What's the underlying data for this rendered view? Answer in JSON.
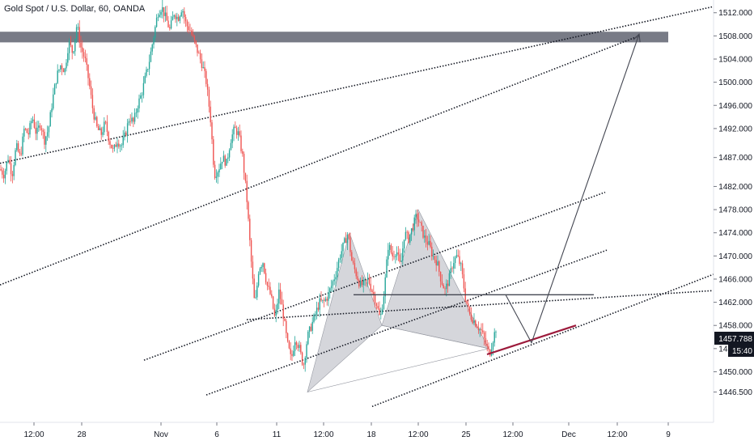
{
  "header": {
    "symbol_title": "Gold Spot / U.S. Dollar, 60, OANDA"
  },
  "price_badges": {
    "last_price": "1457.788",
    "countdown": "15:40"
  },
  "chart_data": {
    "type": "candlestick",
    "title": "Gold Spot / U.S. Dollar, 60, OANDA",
    "xlabel": "",
    "ylabel": "",
    "ylim": [
      1443.5,
      1513.5
    ],
    "y_ticks": [
      "1512.000",
      "1508.000",
      "1504.000",
      "1500.000",
      "1496.000",
      "1492.000",
      "1487.000",
      "1482.000",
      "1478.000",
      "1474.000",
      "1470.000",
      "1466.000",
      "1462.000",
      "1458.000",
      "1454.000",
      "1450.000",
      "1446.500"
    ],
    "x_ticks": [
      "12:00",
      "28",
      "Nov",
      "6",
      "11",
      "12:00",
      "18",
      "12:00",
      "25",
      "12:00",
      "Dec",
      "12:00",
      "9"
    ],
    "price_path": [
      [
        0,
        1485
      ],
      [
        5,
        1484
      ],
      [
        10,
        1487
      ],
      [
        15,
        1484
      ],
      [
        20,
        1489
      ],
      [
        25,
        1487
      ],
      [
        30,
        1492
      ],
      [
        35,
        1491
      ],
      [
        40,
        1494
      ],
      [
        45,
        1491
      ],
      [
        50,
        1493
      ],
      [
        55,
        1490
      ],
      [
        60,
        1492
      ],
      [
        65,
        1497
      ],
      [
        70,
        1501
      ],
      [
        75,
        1503
      ],
      [
        80,
        1502
      ],
      [
        85,
        1507
      ],
      [
        90,
        1505
      ],
      [
        95,
        1510
      ],
      [
        100,
        1506
      ],
      [
        105,
        1504
      ],
      [
        110,
        1500
      ],
      [
        115,
        1495
      ],
      [
        120,
        1492
      ],
      [
        125,
        1491
      ],
      [
        130,
        1493
      ],
      [
        135,
        1490
      ],
      [
        140,
        1488
      ],
      [
        145,
        1490
      ],
      [
        150,
        1489
      ],
      [
        155,
        1491
      ],
      [
        160,
        1494
      ],
      [
        165,
        1493
      ],
      [
        170,
        1496
      ],
      [
        175,
        1498
      ],
      [
        180,
        1501
      ],
      [
        185,
        1504
      ],
      [
        190,
        1508
      ],
      [
        195,
        1512
      ],
      [
        200,
        1513
      ],
      [
        205,
        1511
      ],
      [
        210,
        1509
      ],
      [
        215,
        1512
      ],
      [
        220,
        1511
      ],
      [
        225,
        1513
      ],
      [
        230,
        1510
      ],
      [
        235,
        1509
      ],
      [
        240,
        1507
      ],
      [
        245,
        1505
      ],
      [
        250,
        1503
      ],
      [
        255,
        1500
      ],
      [
        260,
        1494
      ],
      [
        265,
        1484
      ],
      [
        270,
        1485
      ],
      [
        275,
        1487
      ],
      [
        280,
        1486
      ],
      [
        285,
        1490
      ],
      [
        290,
        1492
      ],
      [
        295,
        1491
      ],
      [
        300,
        1487
      ],
      [
        305,
        1480
      ],
      [
        310,
        1470
      ],
      [
        315,
        1461
      ],
      [
        320,
        1468
      ],
      [
        325,
        1469
      ],
      [
        330,
        1465
      ],
      [
        335,
        1463
      ],
      [
        340,
        1459
      ],
      [
        345,
        1464
      ],
      [
        350,
        1460
      ],
      [
        355,
        1455
      ],
      [
        360,
        1452
      ],
      [
        365,
        1456
      ],
      [
        370,
        1454
      ],
      [
        375,
        1451
      ],
      [
        380,
        1456
      ],
      [
        385,
        1458
      ],
      [
        390,
        1460
      ],
      [
        395,
        1462
      ],
      [
        400,
        1462
      ],
      [
        405,
        1463
      ],
      [
        410,
        1465
      ],
      [
        415,
        1467
      ],
      [
        420,
        1470
      ],
      [
        425,
        1472
      ],
      [
        430,
        1474
      ],
      [
        435,
        1469
      ],
      [
        440,
        1467
      ],
      [
        445,
        1465
      ],
      [
        450,
        1465
      ],
      [
        455,
        1466
      ],
      [
        460,
        1464
      ],
      [
        465,
        1462
      ],
      [
        470,
        1459
      ],
      [
        475,
        1464
      ],
      [
        480,
        1472
      ],
      [
        485,
        1470
      ],
      [
        490,
        1471
      ],
      [
        495,
        1468
      ],
      [
        500,
        1474
      ],
      [
        505,
        1473
      ],
      [
        510,
        1475
      ],
      [
        515,
        1477
      ],
      [
        520,
        1475
      ],
      [
        525,
        1473
      ],
      [
        530,
        1472
      ],
      [
        535,
        1470
      ],
      [
        540,
        1469
      ],
      [
        545,
        1466
      ],
      [
        550,
        1464
      ],
      [
        555,
        1466
      ],
      [
        560,
        1469
      ],
      [
        565,
        1470
      ],
      [
        570,
        1468
      ],
      [
        575,
        1463
      ],
      [
        580,
        1460
      ],
      [
        585,
        1459
      ],
      [
        590,
        1458
      ],
      [
        595,
        1457
      ],
      [
        600,
        1455
      ],
      [
        605,
        1453
      ],
      [
        610,
        1456
      ],
      [
        614,
        1458
      ]
    ],
    "horizontal_zone": {
      "from": 1507.3,
      "to": 1508.3
    },
    "neckline": {
      "y": 1463.3,
      "x0": 437,
      "x1": 734
    },
    "support_line": [
      [
        602,
        1453
      ],
      [
        712,
        1458
      ]
    ],
    "projection_path": [
      [
        625,
        1463.3
      ],
      [
        657,
        1455
      ],
      [
        790,
        1508.3
      ]
    ],
    "bat_pattern_points": [
      [
        380,
        1446.5
      ],
      [
        432,
        1474
      ],
      [
        472,
        1458
      ],
      [
        517,
        1478
      ],
      [
        604,
        1454
      ]
    ],
    "channel_lines": [
      [
        [
          0,
          1486
        ],
        [
          880,
          1513
        ]
      ],
      [
        [
          0,
          1465
        ],
        [
          790,
          1508
        ]
      ],
      [
        [
          178,
          1452
        ],
        [
          748,
          1481
        ]
      ],
      [
        [
          255,
          1446
        ],
        [
          750,
          1471
        ]
      ],
      [
        [
          460,
          1444
        ],
        [
          885,
          1467
        ]
      ],
      [
        [
          305,
          1459
        ],
        [
          880,
          1464
        ]
      ]
    ],
    "colors": {
      "up": "#26a69a",
      "down": "#ef5350",
      "zone": "#787b86",
      "support": "#9c1a3b",
      "pattern": "#b2b5be",
      "line": "#131722"
    }
  }
}
